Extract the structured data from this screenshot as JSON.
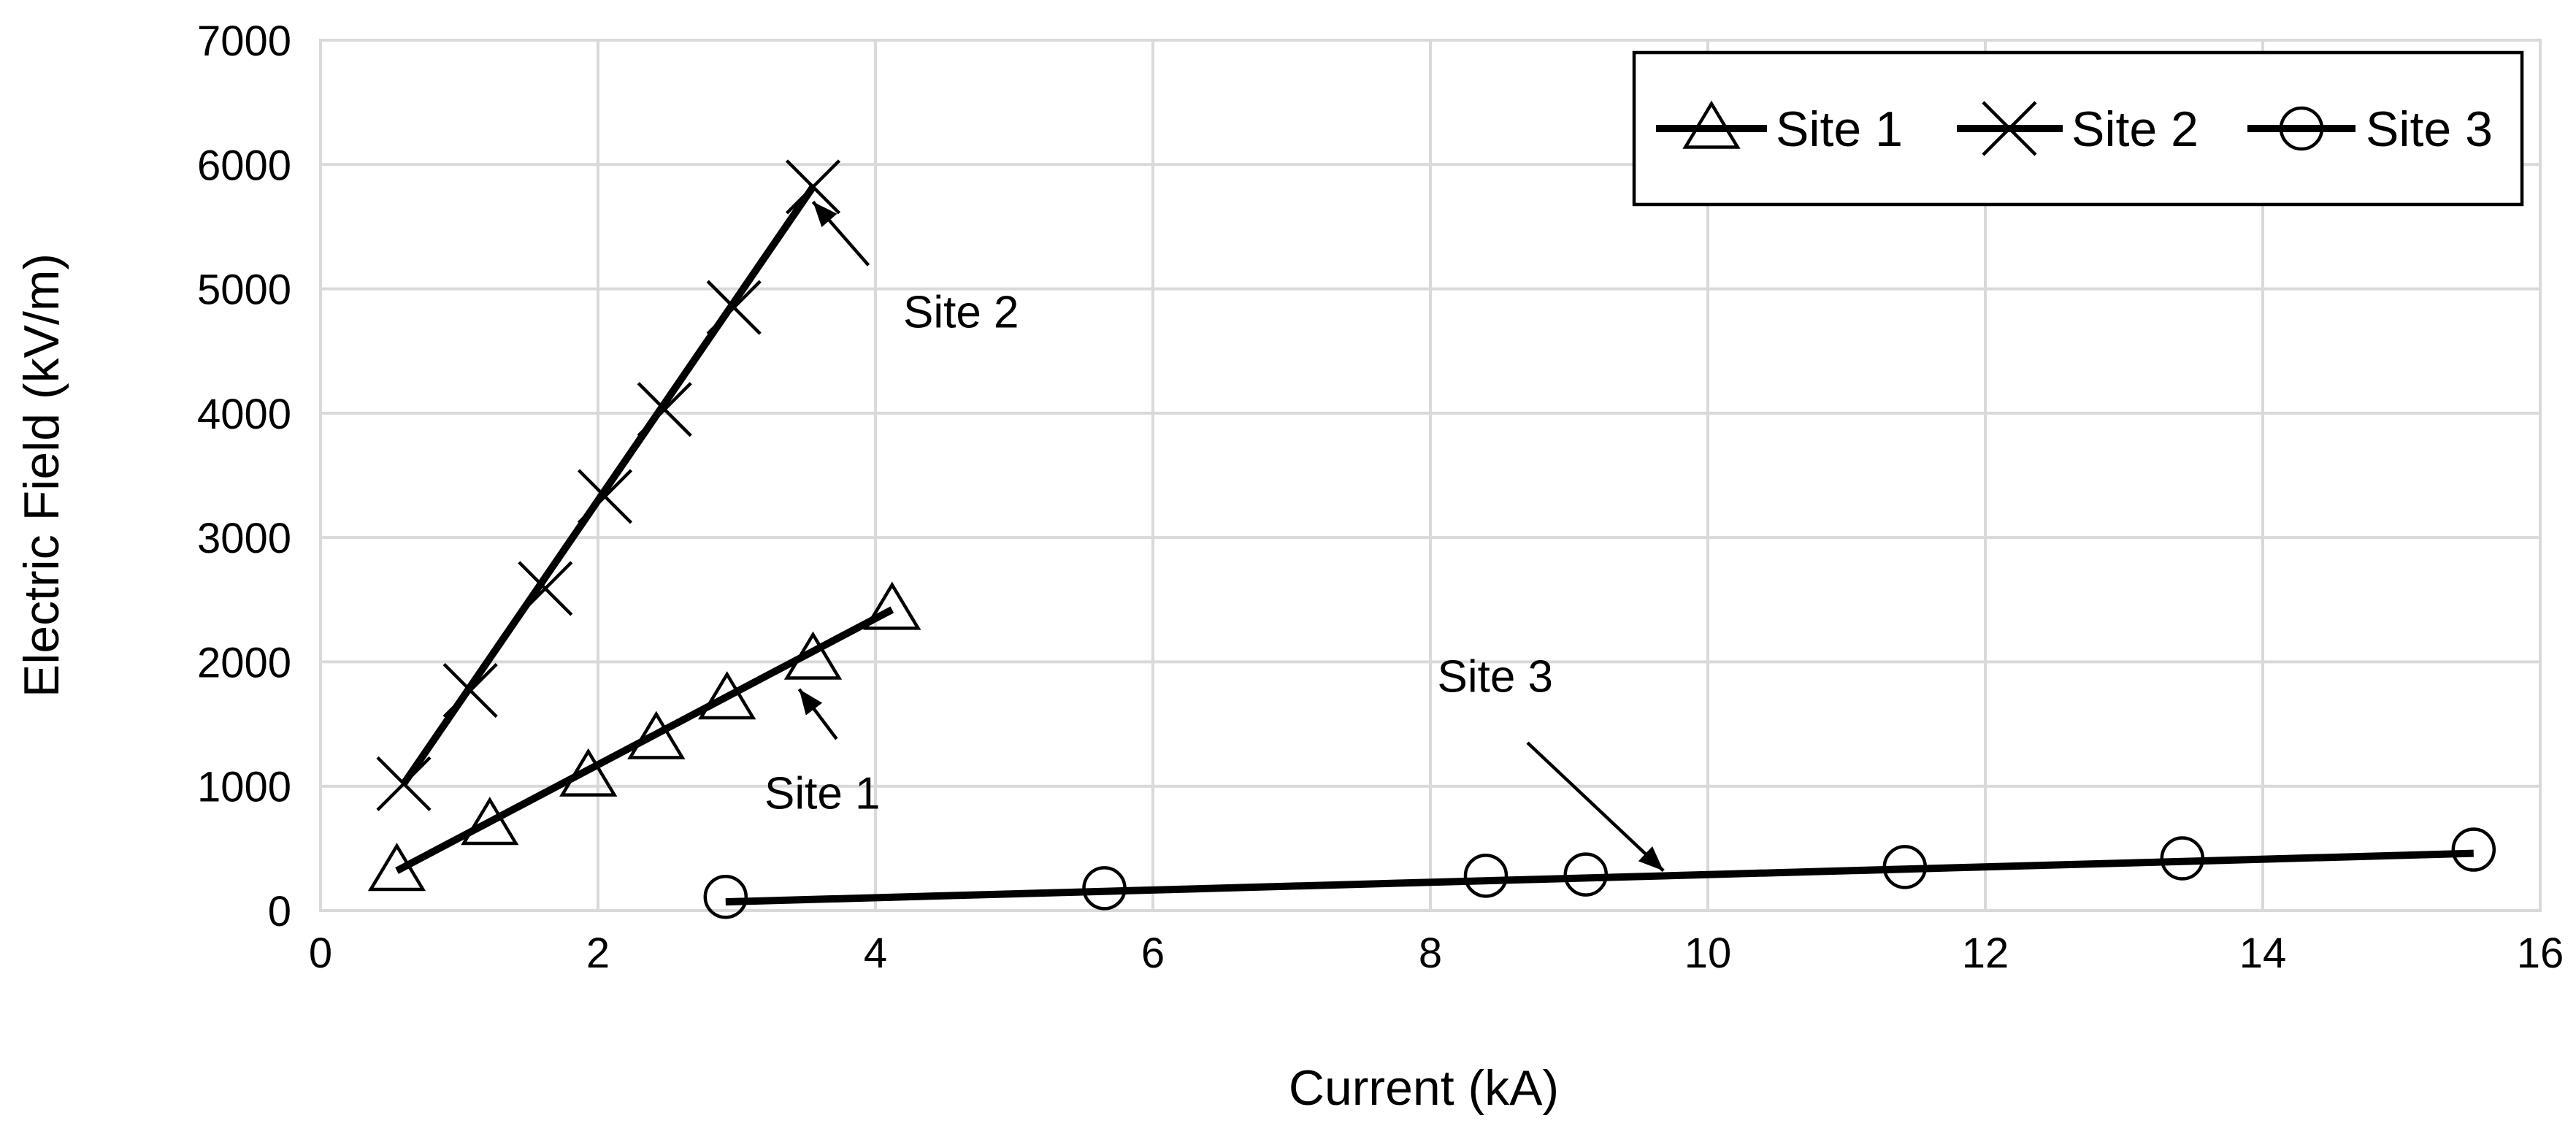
{
  "chart_data": {
    "type": "scatter",
    "title": "",
    "xlabel": "Current (kA)",
    "ylabel": "Electric Field (kV/m)",
    "xlim": [
      0,
      16
    ],
    "ylim": [
      0,
      7000
    ],
    "xticks": [
      0,
      2,
      4,
      6,
      8,
      10,
      12,
      14,
      16
    ],
    "yticks": [
      0,
      1000,
      2000,
      3000,
      4000,
      5000,
      6000,
      7000
    ],
    "grid": true,
    "legend_position": "top-right",
    "series": [
      {
        "name": "Site 1",
        "marker": "triangle",
        "color": "#000000",
        "x": [
          0.55,
          1.22,
          1.93,
          2.42,
          2.93,
          3.55,
          4.12
        ],
        "y": [
          320,
          690,
          1080,
          1380,
          1700,
          2020,
          2420
        ],
        "fit": {
          "x": [
            0.55,
            4.12
          ],
          "y": [
            320,
            2420
          ]
        }
      },
      {
        "name": "Site 2",
        "marker": "x",
        "color": "#000000",
        "x": [
          0.6,
          1.08,
          1.62,
          2.05,
          2.48,
          2.98,
          3.55
        ],
        "y": [
          1020,
          1770,
          2590,
          3330,
          4030,
          4850,
          5820
        ],
        "fit": {
          "x": [
            0.6,
            3.55
          ],
          "y": [
            1020,
            5820
          ]
        }
      },
      {
        "name": "Site 3",
        "marker": "circle",
        "color": "#000000",
        "x": [
          2.92,
          5.65,
          8.4,
          9.12,
          11.42,
          13.42,
          15.52
        ],
        "y": [
          110,
          180,
          280,
          290,
          350,
          420,
          490
        ],
        "fit": {
          "x": [
            2.92,
            15.52
          ],
          "y": [
            70,
            460
          ]
        }
      }
    ],
    "annotations": [
      {
        "text": "Site 2",
        "label_at": [
          4.2,
          4690
        ],
        "arrow_from": [
          3.95,
          5190
        ],
        "arrow_to": [
          3.55,
          5700
        ]
      },
      {
        "text": "Site 1",
        "label_at": [
          3.2,
          820
        ],
        "arrow_from": [
          3.72,
          1380
        ],
        "arrow_to": [
          3.45,
          1780
        ]
      },
      {
        "text": "Site 3",
        "label_at": [
          8.05,
          1760
        ],
        "arrow_from": [
          8.7,
          1350
        ],
        "arrow_to": [
          9.68,
          320
        ]
      }
    ]
  }
}
